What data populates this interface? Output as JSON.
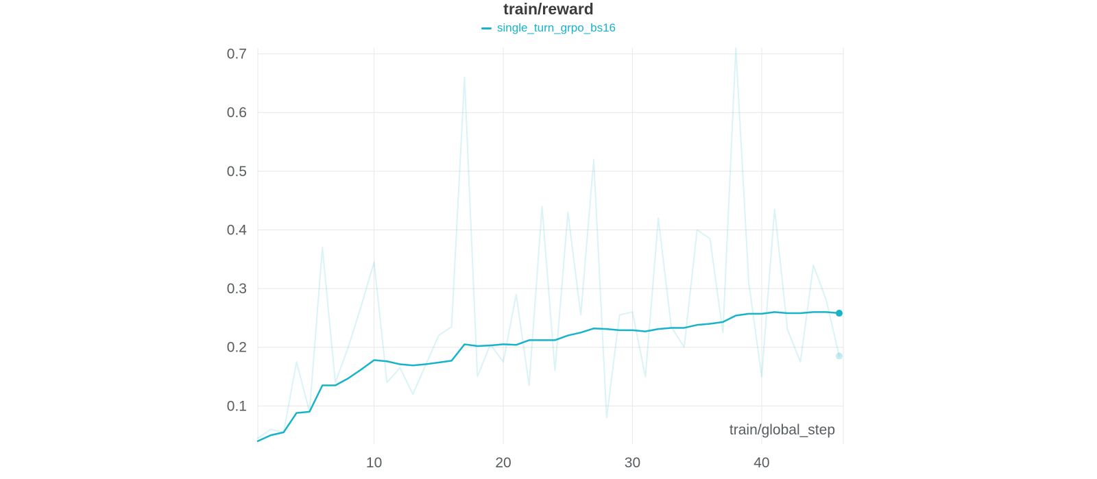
{
  "colors": {
    "accent": "#16b3c9",
    "grid": "#e7e7e7",
    "tick_text": "#575c5f",
    "title_text": "#3c3c3c"
  },
  "chart_data": {
    "type": "line",
    "title": "train/reward",
    "xlabel": "train/global_step",
    "legend_position": "top",
    "grid": true,
    "legend": [
      {
        "label": "single_turn_grpo_bs16",
        "color": "#16b3c9"
      }
    ],
    "x_ticks": [
      10,
      20,
      30,
      40
    ],
    "y_ticks": [
      0.1,
      0.2,
      0.3,
      0.4,
      0.5,
      0.6,
      0.7
    ],
    "xlim": [
      1,
      46
    ],
    "ylim": [
      0.035,
      0.71
    ],
    "x": [
      1,
      2,
      3,
      4,
      5,
      6,
      7,
      8,
      9,
      10,
      11,
      12,
      13,
      14,
      15,
      16,
      17,
      18,
      19,
      20,
      21,
      22,
      23,
      24,
      25,
      26,
      27,
      28,
      29,
      30,
      31,
      32,
      33,
      34,
      35,
      36,
      37,
      38,
      39,
      40,
      41,
      42,
      43,
      44,
      45,
      46
    ],
    "series": [
      {
        "name": "single_turn_grpo_bs16 (raw)",
        "role": "raw",
        "end_dot": true,
        "values": [
          0.045,
          0.06,
          0.055,
          0.175,
          0.09,
          0.37,
          0.14,
          0.2,
          0.27,
          0.345,
          0.14,
          0.165,
          0.12,
          0.17,
          0.22,
          0.235,
          0.66,
          0.15,
          0.205,
          0.175,
          0.29,
          0.135,
          0.44,
          0.16,
          0.43,
          0.255,
          0.52,
          0.08,
          0.255,
          0.26,
          0.15,
          0.42,
          0.235,
          0.2,
          0.4,
          0.385,
          0.225,
          0.71,
          0.31,
          0.15,
          0.435,
          0.23,
          0.175,
          0.34,
          0.28,
          0.185
        ]
      },
      {
        "name": "single_turn_grpo_bs16 (smoothed)",
        "role": "smoothed",
        "end_dot": true,
        "values": [
          0.04,
          0.05,
          0.055,
          0.088,
          0.09,
          0.135,
          0.135,
          0.147,
          0.162,
          0.178,
          0.176,
          0.171,
          0.169,
          0.171,
          0.174,
          0.177,
          0.205,
          0.202,
          0.203,
          0.205,
          0.204,
          0.212,
          0.212,
          0.212,
          0.22,
          0.225,
          0.232,
          0.231,
          0.229,
          0.229,
          0.227,
          0.231,
          0.233,
          0.233,
          0.238,
          0.24,
          0.243,
          0.254,
          0.257,
          0.257,
          0.26,
          0.258,
          0.258,
          0.26,
          0.26,
          0.258
        ]
      }
    ]
  }
}
